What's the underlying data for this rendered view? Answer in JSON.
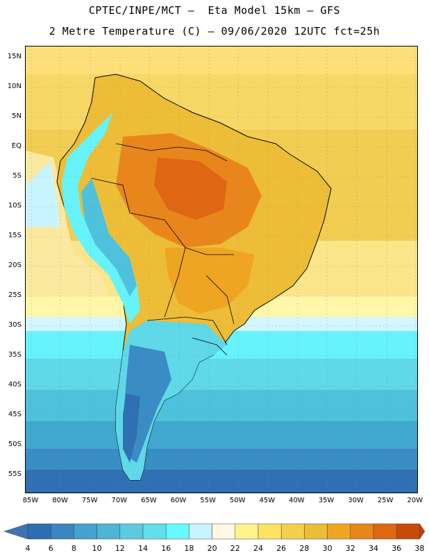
{
  "header": {
    "line1": "CPTEC/INPE/MCT –  Eta Model 15km – GFS",
    "line2": "2 Metre Temperature (C) – 09/06/2020 12UTC fct=25h"
  },
  "map": {
    "region": "South America",
    "variable": "2 Metre Temperature",
    "units": "C",
    "lat_labels": [
      "15N",
      "10N",
      "5N",
      "EQ",
      "5S",
      "10S",
      "15S",
      "20S",
      "25S",
      "30S",
      "35S",
      "40S",
      "45S",
      "50S",
      "55S"
    ],
    "lon_labels": [
      "85W",
      "80W",
      "75W",
      "70W",
      "65W",
      "60W",
      "55W",
      "50W",
      "45W",
      "40W",
      "35W",
      "30W",
      "25W",
      "20W"
    ]
  },
  "colorbar": {
    "labels": [
      "4",
      "6",
      "8",
      "10",
      "12",
      "14",
      "16",
      "18",
      "20",
      "22",
      "24",
      "26",
      "28",
      "30",
      "32",
      "34",
      "36",
      "38"
    ],
    "colors": [
      "#2c6eb4",
      "#3a85c2",
      "#43a2cf",
      "#4eb4d8",
      "#5ccbdf",
      "#5fe0ea",
      "#66f9ff",
      "#c8f4ff",
      "#fff9e3",
      "#fff38b",
      "#fde362",
      "#f4cf4c",
      "#edbd37",
      "#f0a522",
      "#e8861c",
      "#df6612",
      "#c84a08"
    ],
    "low_arrow_color": "#3f73b6",
    "high_arrow_color": "#b9420e"
  }
}
